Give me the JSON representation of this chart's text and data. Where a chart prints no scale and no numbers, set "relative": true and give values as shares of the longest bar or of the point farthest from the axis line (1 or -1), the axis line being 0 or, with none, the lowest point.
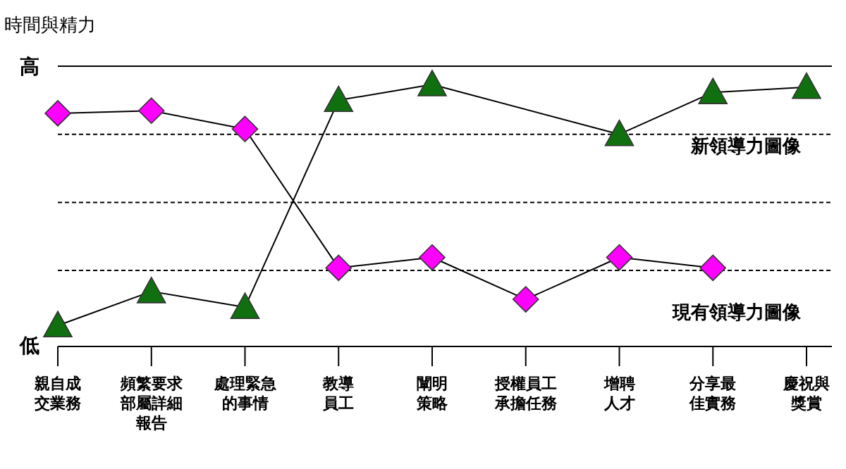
{
  "chart_data": {
    "type": "line",
    "relative": true,
    "ylabel": "時間與精力",
    "annotations": [
      "高",
      "低"
    ],
    "categories": [
      "親自成交業務",
      "頻繁要求部屬詳細報告",
      "處理緊急的事情",
      "教導員工",
      "闡明策略",
      "授權員工承擔任務",
      "增聘人才",
      "分享最佳實務",
      "慶祝與獎賞"
    ],
    "series": [
      {
        "name": "現有領導力圖像",
        "color": "#ff00ff",
        "marker": "diamond",
        "values": [
          0.89,
          0.9,
          0.83,
          0.3,
          0.34,
          0.18,
          0.34,
          0.3,
          null
        ]
      },
      {
        "name": "新領導力圖像",
        "color": "#107010",
        "marker": "triangle",
        "values": [
          0.08,
          0.21,
          0.15,
          0.94,
          1.0,
          null,
          0.81,
          0.97,
          0.99
        ]
      }
    ],
    "ref_lines": [
      {
        "axis": "y",
        "value": 1.07,
        "line_style": "solid",
        "color": "#000000"
      },
      {
        "axis": "y",
        "value": 0.81,
        "line_style": "dashed",
        "color": "#000000"
      },
      {
        "axis": "y",
        "value": 0.55,
        "line_style": "dashed",
        "color": "#000000"
      },
      {
        "axis": "y",
        "value": 0.29,
        "line_style": "dashed",
        "color": "#000000"
      }
    ],
    "legend": false
  }
}
